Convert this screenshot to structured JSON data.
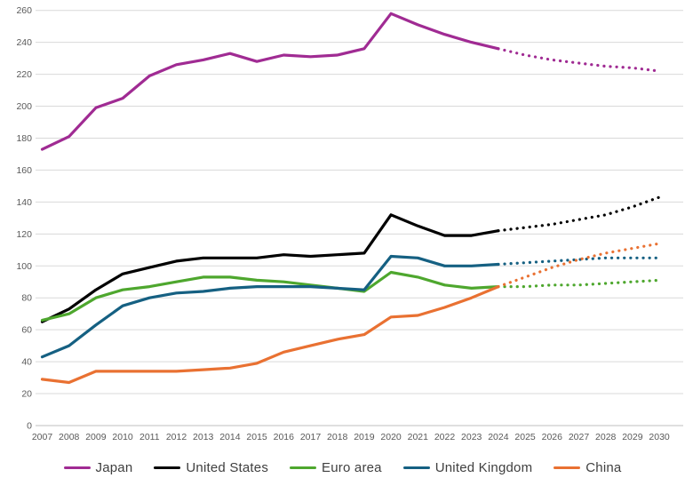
{
  "chart_data": {
    "type": "line",
    "title": "",
    "xlabel": "",
    "ylabel": "",
    "x": [
      2007,
      2008,
      2009,
      2010,
      2011,
      2012,
      2013,
      2014,
      2015,
      2016,
      2017,
      2018,
      2019,
      2020,
      2021,
      2022,
      2023,
      2024,
      2025,
      2026,
      2027,
      2028,
      2029,
      2030
    ],
    "x_tick_labels": [
      "2007",
      "2008",
      "2009",
      "2010",
      "2011",
      "2012",
      "2013",
      "2014",
      "2015",
      "2016",
      "2017",
      "2018",
      "2019",
      "2020",
      "2021",
      "2022",
      "2023",
      "2024",
      "2025",
      "2026",
      "2027",
      "2028",
      "2029",
      "2030"
    ],
    "y_ticks": [
      0,
      20,
      40,
      60,
      80,
      100,
      120,
      140,
      160,
      180,
      200,
      220,
      240,
      260
    ],
    "ylim": [
      0,
      260
    ],
    "grid": true,
    "legend_position": "bottom",
    "forecast_start_year": 2024,
    "forecast_style": "dotted",
    "colors": {
      "gridline": "#D9D9D9",
      "axis_line": "#BFBFBF",
      "tick_label": "#595959",
      "legend_text": "#404040"
    },
    "series": [
      {
        "name": "Japan",
        "color": "#A02B93",
        "values": [
          173,
          181,
          199,
          205,
          219,
          226,
          229,
          233,
          228,
          232,
          231,
          232,
          236,
          258,
          251,
          245,
          240,
          236,
          232,
          229,
          227,
          225,
          224,
          222
        ]
      },
      {
        "name": "United States",
        "color": "#000000",
        "values": [
          65,
          73,
          85,
          95,
          99,
          103,
          105,
          105,
          105,
          107,
          106,
          107,
          108,
          132,
          125,
          119,
          119,
          122,
          124,
          126,
          129,
          132,
          137,
          143
        ]
      },
      {
        "name": "Euro area",
        "color": "#4EA72E",
        "values": [
          66,
          70,
          80,
          85,
          87,
          90,
          93,
          93,
          91,
          90,
          88,
          86,
          84,
          96,
          93,
          88,
          86,
          87,
          87,
          88,
          88,
          89,
          90,
          91
        ]
      },
      {
        "name": "United Kingdom",
        "color": "#156082",
        "values": [
          43,
          50,
          63,
          75,
          80,
          83,
          84,
          86,
          87,
          87,
          87,
          86,
          85,
          106,
          105,
          100,
          100,
          101,
          102,
          103,
          104,
          105,
          105,
          105
        ]
      },
      {
        "name": "China",
        "color": "#E97132",
        "values": [
          29,
          27,
          34,
          34,
          34,
          34,
          35,
          36,
          39,
          46,
          50,
          54,
          57,
          68,
          69,
          74,
          80,
          87,
          93,
          99,
          104,
          108,
          111,
          114
        ]
      }
    ]
  }
}
